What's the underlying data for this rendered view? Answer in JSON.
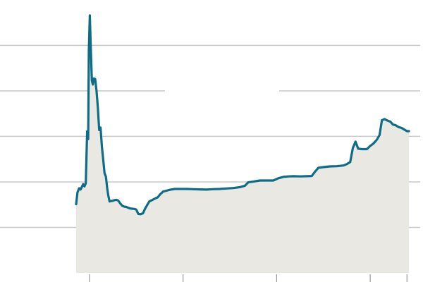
{
  "chart_data": {
    "type": "area",
    "title": "",
    "xlabel": "",
    "ylabel": "",
    "x_domain": [
      0,
      100
    ],
    "ylim": [
      0,
      115
    ],
    "grid": true,
    "grid_lines_y": [
      20,
      40,
      60,
      80,
      100
    ],
    "x_ticks": [
      4,
      32,
      60,
      88,
      99
    ],
    "colors": {
      "line": "#0e6c87",
      "area": "#e9e8e3",
      "grid": "#c8c8c8",
      "axis_ticks": "#9a9a9a"
    },
    "series": [
      {
        "points": [
          [
            0.0,
            30.2
          ],
          [
            0.4,
            35.4
          ],
          [
            0.9,
            37.2
          ],
          [
            1.3,
            36.6
          ],
          [
            1.7,
            37.8
          ],
          [
            2.1,
            39.0
          ],
          [
            2.5,
            38.0
          ],
          [
            2.9,
            39.4
          ],
          [
            3.3,
            62.2
          ],
          [
            3.6,
            58.8
          ],
          [
            3.8,
            97.6
          ],
          [
            4.1,
            113.2
          ],
          [
            4.4,
            97.6
          ],
          [
            4.7,
            84.6
          ],
          [
            5.0,
            82.8
          ],
          [
            5.3,
            85.5
          ],
          [
            5.7,
            85.2
          ],
          [
            6.1,
            80.1
          ],
          [
            6.5,
            72.7
          ],
          [
            6.9,
            62.8
          ],
          [
            7.3,
            63.9
          ],
          [
            7.7,
            55.6
          ],
          [
            8.1,
            49.8
          ],
          [
            8.5,
            43.8
          ],
          [
            8.9,
            42.3
          ],
          [
            9.3,
            37.1
          ],
          [
            9.6,
            34.2
          ],
          [
            10.0,
            31.4
          ],
          [
            10.5,
            31.6
          ],
          [
            11.0,
            31.7
          ],
          [
            11.5,
            32.0
          ],
          [
            12.0,
            32.1
          ],
          [
            12.6,
            31.8
          ],
          [
            13.2,
            30.5
          ],
          [
            13.8,
            29.5
          ],
          [
            14.4,
            29.1
          ],
          [
            15.0,
            29.0
          ],
          [
            15.6,
            28.6
          ],
          [
            16.2,
            28.3
          ],
          [
            16.8,
            28.2
          ],
          [
            17.4,
            28.1
          ],
          [
            18.0,
            27.8
          ],
          [
            18.6,
            25.9
          ],
          [
            19.3,
            25.8
          ],
          [
            20.0,
            26.2
          ],
          [
            20.6,
            28.1
          ],
          [
            21.2,
            29.7
          ],
          [
            21.9,
            31.4
          ],
          [
            22.7,
            32.0
          ],
          [
            23.5,
            32.6
          ],
          [
            24.4,
            33.2
          ],
          [
            25.2,
            34.6
          ],
          [
            26.0,
            35.7
          ],
          [
            27.0,
            36.1
          ],
          [
            28.0,
            36.5
          ],
          [
            29.5,
            36.9
          ],
          [
            31.0,
            36.9
          ],
          [
            33.0,
            36.9
          ],
          [
            35.0,
            36.8
          ],
          [
            37.0,
            36.7
          ],
          [
            39.0,
            36.6
          ],
          [
            41.0,
            36.8
          ],
          [
            43.0,
            36.9
          ],
          [
            45.0,
            37.1
          ],
          [
            47.0,
            37.3
          ],
          [
            49.0,
            37.7
          ],
          [
            50.5,
            38.3
          ],
          [
            51.5,
            39.8
          ],
          [
            53.0,
            40.1
          ],
          [
            55.0,
            40.6
          ],
          [
            57.0,
            40.6
          ],
          [
            59.0,
            40.6
          ],
          [
            60.5,
            41.6
          ],
          [
            62.0,
            42.2
          ],
          [
            63.5,
            42.4
          ],
          [
            65.0,
            42.5
          ],
          [
            67.0,
            42.4
          ],
          [
            69.0,
            42.5
          ],
          [
            70.5,
            42.6
          ],
          [
            71.5,
            44.5
          ],
          [
            72.5,
            46.2
          ],
          [
            74.0,
            46.5
          ],
          [
            76.0,
            46.8
          ],
          [
            78.0,
            46.9
          ],
          [
            80.0,
            47.2
          ],
          [
            81.0,
            47.8
          ],
          [
            82.0,
            48.7
          ],
          [
            82.8,
            54.9
          ],
          [
            83.6,
            57.7
          ],
          [
            84.4,
            54.6
          ],
          [
            85.5,
            54.4
          ],
          [
            87.0,
            54.4
          ],
          [
            88.0,
            55.8
          ],
          [
            89.0,
            56.9
          ],
          [
            90.0,
            58.6
          ],
          [
            90.8,
            60.6
          ],
          [
            91.5,
            67.1
          ],
          [
            92.3,
            67.6
          ],
          [
            93.1,
            67.0
          ],
          [
            94.0,
            66.5
          ],
          [
            94.8,
            65.2
          ],
          [
            95.6,
            64.9
          ],
          [
            96.5,
            64.1
          ],
          [
            97.4,
            63.7
          ],
          [
            98.2,
            63.0
          ],
          [
            99.0,
            62.3
          ],
          [
            99.6,
            62.3
          ]
        ]
      }
    ]
  }
}
